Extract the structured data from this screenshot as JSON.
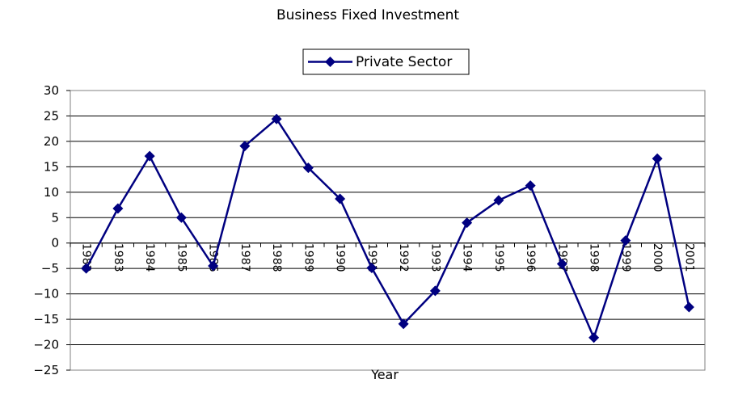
{
  "chart_data": {
    "type": "line",
    "title": "Business Fixed Investment",
    "xlabel": "Year",
    "ylabel": "",
    "ylim": [
      -25,
      30
    ],
    "yticks": [
      30,
      25,
      20,
      15,
      10,
      5,
      0,
      -5,
      -10,
      -15,
      -20,
      -25
    ],
    "ytick_labels": [
      "30",
      "25",
      "20",
      "15",
      "10",
      "5",
      "0",
      "−5",
      "−10",
      "−15",
      "−20",
      "−25"
    ],
    "grid": true,
    "legend_position": "top-center",
    "categories": [
      "1982",
      "1983",
      "1984",
      "1985",
      "1986",
      "1987",
      "1988",
      "1989",
      "1990",
      "1991",
      "1992",
      "1993",
      "1994",
      "1995",
      "1996",
      "1997",
      "1998",
      "1999",
      "2000",
      "2001"
    ],
    "series": [
      {
        "name": "Private Sector",
        "color": "#000080",
        "marker": "diamond",
        "values": [
          -5.0,
          6.8,
          17.1,
          5.0,
          -4.5,
          19.1,
          24.4,
          14.8,
          8.7,
          -4.9,
          -15.9,
          -9.4,
          4.0,
          8.4,
          11.3,
          -4.1,
          -18.6,
          0.5,
          16.6,
          -12.6
        ]
      }
    ]
  }
}
